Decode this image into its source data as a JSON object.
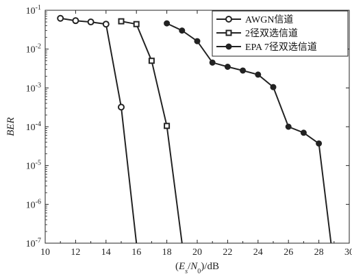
{
  "chart_data": {
    "type": "line",
    "xlabel": "(E_s/N_0)/dB",
    "ylabel": "BER",
    "xlim": [
      10,
      30
    ],
    "ylim": [
      1e-07,
      0.1
    ],
    "yscale": "log",
    "grid": false,
    "legend_position": "top-right",
    "x_ticks": [
      10,
      12,
      14,
      16,
      18,
      20,
      22,
      24,
      26,
      28,
      30
    ],
    "x_tick_labels": [
      "10",
      "12",
      "14",
      "16",
      "18",
      "20",
      "22",
      "24",
      "26",
      "28",
      "30"
    ],
    "y_ticks": [
      1e-07,
      1e-06,
      1e-05,
      0.0001,
      0.001,
      0.01,
      0.1
    ],
    "y_tick_labels": [
      {
        "base": "10",
        "exp": "-7"
      },
      {
        "base": "10",
        "exp": "-6"
      },
      {
        "base": "10",
        "exp": "-5"
      },
      {
        "base": "10",
        "exp": "-4"
      },
      {
        "base": "10",
        "exp": "-3"
      },
      {
        "base": "10",
        "exp": "-2"
      },
      {
        "base": "10",
        "exp": "-1"
      }
    ],
    "series": [
      {
        "name": "AWGN信道",
        "marker": "open-circle",
        "color": "#222222",
        "x": [
          11,
          12,
          13,
          14,
          15,
          16
        ],
        "y": [
          0.062,
          0.054,
          0.05,
          0.044,
          0.00032,
          1e-07
        ]
      },
      {
        "name": "2径双选信道",
        "marker": "open-square",
        "color": "#222222",
        "x": [
          15,
          16,
          17,
          18,
          19
        ],
        "y": [
          0.052,
          0.044,
          0.005,
          0.000105,
          1e-07
        ]
      },
      {
        "name": "EPA 7径双选信道",
        "marker": "filled-circle",
        "color": "#222222",
        "x": [
          18,
          19,
          20,
          21,
          22,
          23,
          24,
          25,
          26,
          27,
          28,
          28.8
        ],
        "y": [
          0.046,
          0.03,
          0.016,
          0.0045,
          0.0035,
          0.0028,
          0.0022,
          0.00105,
          0.0001,
          7e-05,
          3.7e-05,
          1e-07
        ]
      }
    ]
  }
}
